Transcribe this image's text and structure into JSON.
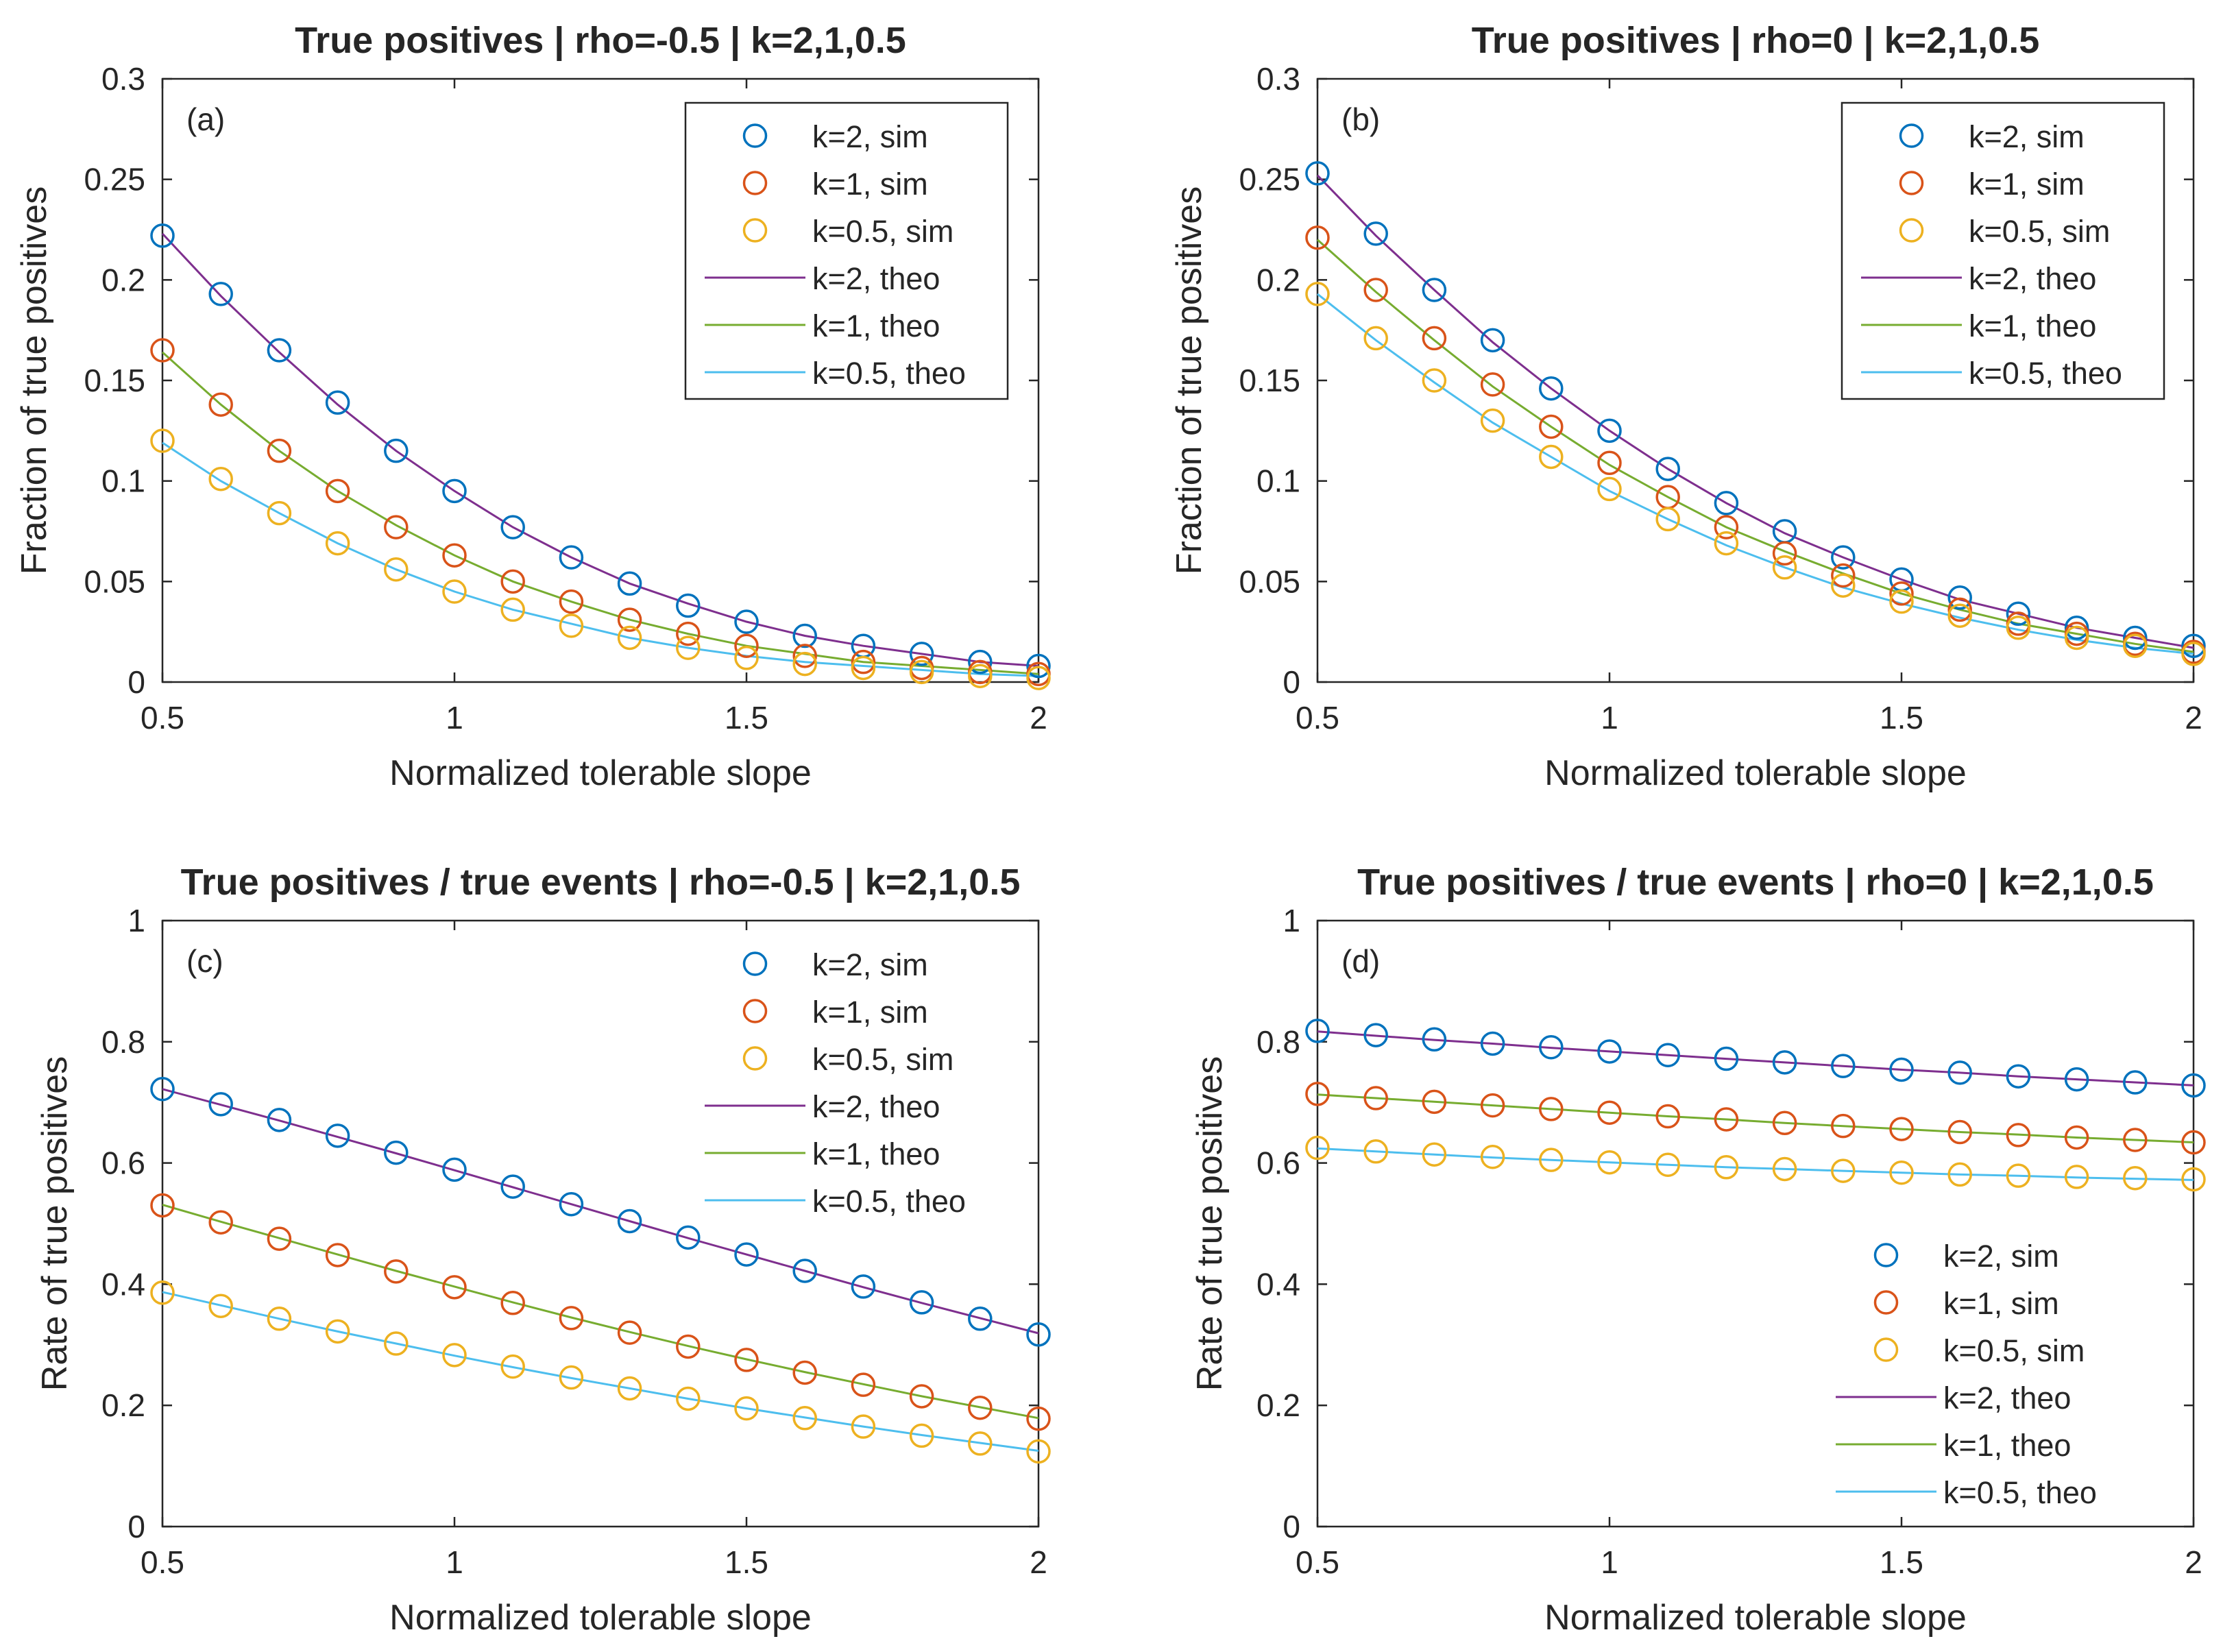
{
  "colors": {
    "sim_k2": "#0072BD",
    "sim_k1": "#D95319",
    "sim_k05": "#EDB120",
    "theo_k2": "#7E2F8E",
    "theo_k1": "#77AC30",
    "theo_k05": "#4DBEEE",
    "axis": "#262626"
  },
  "chart_data": [
    {
      "type": "line",
      "panel_label": "(a)",
      "title": "True positives | rho=-0.5 | k=2,1,0.5",
      "xlabel": "Normalized tolerable slope",
      "ylabel": "Fraction of true positives",
      "xlim": [
        0.5,
        2
      ],
      "ylim": [
        0,
        0.3
      ],
      "xticks": [
        "0.5",
        "1",
        "1.5",
        "2"
      ],
      "yticks": [
        "0",
        "0.05",
        "0.1",
        "0.15",
        "0.2",
        "0.25",
        "0.3"
      ],
      "legend_position": "top-right",
      "x": [
        0.5,
        0.6,
        0.7,
        0.8,
        0.9,
        1.0,
        1.1,
        1.2,
        1.3,
        1.4,
        1.5,
        1.6,
        1.7,
        1.8,
        1.9,
        2.0
      ],
      "series": [
        {
          "name": "k=2, sim",
          "kind": "sim",
          "values": [
            0.222,
            0.193,
            0.165,
            0.139,
            0.115,
            0.095,
            0.077,
            0.062,
            0.049,
            0.038,
            0.03,
            0.023,
            0.018,
            0.014,
            0.01,
            0.008
          ]
        },
        {
          "name": "k=1, sim",
          "kind": "sim",
          "values": [
            0.165,
            0.138,
            0.115,
            0.095,
            0.077,
            0.063,
            0.05,
            0.04,
            0.031,
            0.024,
            0.018,
            0.013,
            0.01,
            0.007,
            0.005,
            0.004
          ]
        },
        {
          "name": "k=0.5, sim",
          "kind": "sim",
          "values": [
            0.12,
            0.101,
            0.084,
            0.069,
            0.056,
            0.045,
            0.036,
            0.028,
            0.022,
            0.017,
            0.012,
            0.009,
            0.007,
            0.005,
            0.003,
            0.002
          ]
        },
        {
          "name": "k=2, theo",
          "kind": "theo",
          "values": [
            0.223,
            0.192,
            0.164,
            0.138,
            0.115,
            0.095,
            0.077,
            0.062,
            0.049,
            0.039,
            0.03,
            0.023,
            0.018,
            0.014,
            0.01,
            0.008
          ]
        },
        {
          "name": "k=1, theo",
          "kind": "theo",
          "values": [
            0.164,
            0.138,
            0.115,
            0.095,
            0.078,
            0.063,
            0.05,
            0.04,
            0.031,
            0.024,
            0.018,
            0.014,
            0.01,
            0.008,
            0.006,
            0.004
          ]
        },
        {
          "name": "k=0.5, theo",
          "kind": "theo",
          "values": [
            0.119,
            0.1,
            0.084,
            0.069,
            0.056,
            0.045,
            0.036,
            0.029,
            0.022,
            0.017,
            0.013,
            0.01,
            0.008,
            0.006,
            0.004,
            0.003
          ]
        }
      ]
    },
    {
      "type": "line",
      "panel_label": "(b)",
      "title": "True positives | rho=0 | k=2,1,0.5",
      "xlabel": "Normalized tolerable slope",
      "ylabel": "Fraction of true positives",
      "xlim": [
        0.5,
        2
      ],
      "ylim": [
        0,
        0.3
      ],
      "xticks": [
        "0.5",
        "1",
        "1.5",
        "2"
      ],
      "yticks": [
        "0",
        "0.05",
        "0.1",
        "0.15",
        "0.2",
        "0.25",
        "0.3"
      ],
      "legend_position": "top-right",
      "x": [
        0.5,
        0.6,
        0.7,
        0.8,
        0.9,
        1.0,
        1.1,
        1.2,
        1.3,
        1.4,
        1.5,
        1.6,
        1.7,
        1.8,
        1.9,
        2.0
      ],
      "series": [
        {
          "name": "k=2, sim",
          "kind": "sim",
          "values": [
            0.253,
            0.223,
            0.195,
            0.17,
            0.146,
            0.125,
            0.106,
            0.089,
            0.075,
            0.062,
            0.051,
            0.042,
            0.034,
            0.027,
            0.022,
            0.018
          ]
        },
        {
          "name": "k=1, sim",
          "kind": "sim",
          "values": [
            0.221,
            0.195,
            0.171,
            0.148,
            0.127,
            0.109,
            0.092,
            0.077,
            0.064,
            0.053,
            0.044,
            0.036,
            0.029,
            0.024,
            0.019,
            0.015
          ]
        },
        {
          "name": "k=0.5, sim",
          "kind": "sim",
          "values": [
            0.193,
            0.171,
            0.15,
            0.13,
            0.112,
            0.096,
            0.081,
            0.069,
            0.057,
            0.048,
            0.04,
            0.033,
            0.027,
            0.022,
            0.018,
            0.014
          ]
        },
        {
          "name": "k=2, theo",
          "kind": "theo",
          "values": [
            0.252,
            0.222,
            0.195,
            0.169,
            0.146,
            0.125,
            0.106,
            0.089,
            0.074,
            0.062,
            0.051,
            0.041,
            0.034,
            0.027,
            0.022,
            0.017
          ]
        },
        {
          "name": "k=1, theo",
          "kind": "theo",
          "values": [
            0.22,
            0.194,
            0.17,
            0.147,
            0.127,
            0.108,
            0.092,
            0.077,
            0.065,
            0.054,
            0.044,
            0.036,
            0.029,
            0.024,
            0.019,
            0.015
          ]
        },
        {
          "name": "k=0.5, theo",
          "kind": "theo",
          "values": [
            0.193,
            0.17,
            0.149,
            0.129,
            0.112,
            0.095,
            0.081,
            0.068,
            0.057,
            0.047,
            0.039,
            0.032,
            0.026,
            0.021,
            0.017,
            0.014
          ]
        }
      ]
    },
    {
      "type": "line",
      "panel_label": "(c)",
      "title": "True positives / true events | rho=-0.5 | k=2,1,0.5",
      "xlabel": "Normalized tolerable slope",
      "ylabel": "Rate of true positives",
      "xlim": [
        0.5,
        2
      ],
      "ylim": [
        0,
        1
      ],
      "xticks": [
        "0.5",
        "1",
        "1.5",
        "2"
      ],
      "yticks": [
        "0",
        "0.2",
        "0.4",
        "0.6",
        "0.8",
        "1"
      ],
      "legend_position": "top-right",
      "x": [
        0.5,
        0.6,
        0.7,
        0.8,
        0.9,
        1.0,
        1.1,
        1.2,
        1.3,
        1.4,
        1.5,
        1.6,
        1.7,
        1.8,
        1.9,
        2.0
      ],
      "series": [
        {
          "name": "k=2, sim",
          "kind": "sim",
          "values": [
            0.722,
            0.697,
            0.671,
            0.645,
            0.617,
            0.589,
            0.561,
            0.532,
            0.504,
            0.477,
            0.449,
            0.422,
            0.396,
            0.37,
            0.343,
            0.317
          ]
        },
        {
          "name": "k=1, sim",
          "kind": "sim",
          "values": [
            0.53,
            0.502,
            0.475,
            0.448,
            0.421,
            0.395,
            0.369,
            0.344,
            0.32,
            0.297,
            0.275,
            0.254,
            0.234,
            0.215,
            0.196,
            0.178
          ]
        },
        {
          "name": "k=0.5, sim",
          "kind": "sim",
          "values": [
            0.386,
            0.364,
            0.343,
            0.322,
            0.302,
            0.283,
            0.264,
            0.246,
            0.228,
            0.211,
            0.195,
            0.179,
            0.165,
            0.15,
            0.137,
            0.124
          ]
        },
        {
          "name": "k=2, theo",
          "kind": "theo",
          "values": [
            0.722,
            0.696,
            0.67,
            0.643,
            0.616,
            0.588,
            0.56,
            0.532,
            0.504,
            0.476,
            0.449,
            0.422,
            0.395,
            0.369,
            0.344,
            0.319
          ]
        },
        {
          "name": "k=1, theo",
          "kind": "theo",
          "values": [
            0.531,
            0.503,
            0.476,
            0.449,
            0.422,
            0.396,
            0.37,
            0.345,
            0.321,
            0.298,
            0.276,
            0.255,
            0.235,
            0.215,
            0.197,
            0.179
          ]
        },
        {
          "name": "k=0.5, theo",
          "kind": "theo",
          "values": [
            0.387,
            0.365,
            0.343,
            0.322,
            0.302,
            0.282,
            0.263,
            0.245,
            0.228,
            0.211,
            0.195,
            0.18,
            0.165,
            0.151,
            0.138,
            0.125
          ]
        }
      ]
    },
    {
      "type": "line",
      "panel_label": "(d)",
      "title": "True positives / true events | rho=0 | k=2,1,0.5",
      "xlabel": "Normalized tolerable slope",
      "ylabel": "Rate of true positives",
      "xlim": [
        0.5,
        2
      ],
      "ylim": [
        0,
        1
      ],
      "xticks": [
        "0.5",
        "1",
        "1.5",
        "2"
      ],
      "yticks": [
        "0",
        "0.2",
        "0.4",
        "0.6",
        "0.8",
        "1"
      ],
      "legend_position": "bottom-right",
      "x": [
        0.5,
        0.6,
        0.7,
        0.8,
        0.9,
        1.0,
        1.1,
        1.2,
        1.3,
        1.4,
        1.5,
        1.6,
        1.7,
        1.8,
        1.9,
        2.0
      ],
      "series": [
        {
          "name": "k=2, sim",
          "kind": "sim",
          "values": [
            0.818,
            0.811,
            0.804,
            0.797,
            0.791,
            0.784,
            0.778,
            0.772,
            0.766,
            0.76,
            0.754,
            0.749,
            0.743,
            0.738,
            0.733,
            0.728
          ]
        },
        {
          "name": "k=1, sim",
          "kind": "sim",
          "values": [
            0.714,
            0.707,
            0.701,
            0.695,
            0.689,
            0.683,
            0.677,
            0.672,
            0.666,
            0.661,
            0.656,
            0.651,
            0.646,
            0.642,
            0.638,
            0.634
          ]
        },
        {
          "name": "k=0.5, sim",
          "kind": "sim",
          "values": [
            0.625,
            0.619,
            0.614,
            0.61,
            0.605,
            0.601,
            0.597,
            0.593,
            0.59,
            0.587,
            0.584,
            0.581,
            0.579,
            0.577,
            0.575,
            0.573
          ]
        },
        {
          "name": "k=2, theo",
          "kind": "theo",
          "values": [
            0.817,
            0.81,
            0.803,
            0.797,
            0.79,
            0.784,
            0.778,
            0.772,
            0.766,
            0.76,
            0.754,
            0.749,
            0.743,
            0.738,
            0.733,
            0.728
          ]
        },
        {
          "name": "k=1, theo",
          "kind": "theo",
          "values": [
            0.713,
            0.707,
            0.701,
            0.695,
            0.689,
            0.683,
            0.677,
            0.672,
            0.666,
            0.661,
            0.656,
            0.651,
            0.647,
            0.642,
            0.638,
            0.634
          ]
        },
        {
          "name": "k=0.5, theo",
          "kind": "theo",
          "values": [
            0.624,
            0.619,
            0.614,
            0.609,
            0.605,
            0.601,
            0.597,
            0.593,
            0.59,
            0.587,
            0.584,
            0.581,
            0.579,
            0.576,
            0.574,
            0.572
          ]
        }
      ]
    }
  ]
}
